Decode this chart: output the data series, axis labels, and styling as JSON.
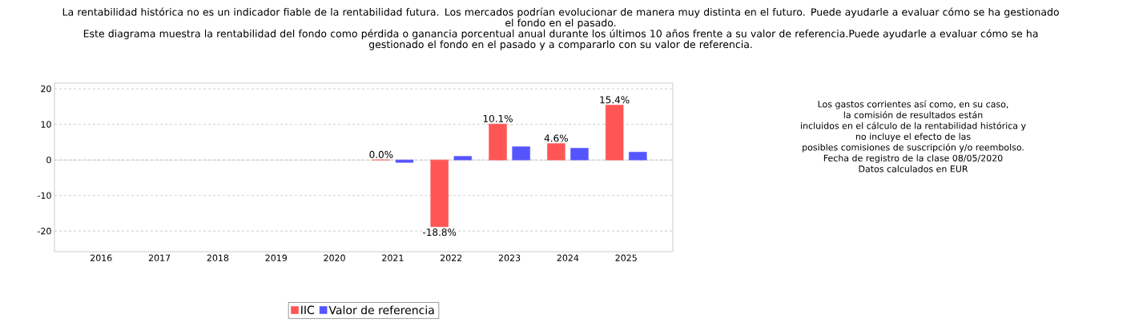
{
  "chart_data": {
    "type": "bar",
    "title": "La rentabilidad histórica no es un indicador fiable de la rentabilidad futura. Los mercados podrían evolucionar de manera muy distinta en el futuro. Puede ayudarle a evaluar cómo se ha gestionado el fondo en el pasado.",
    "subtitle": "Este diagrama muestra la rentabilidad del fondo como pérdida o ganancia porcentual anual durante los últimos 10 años frente a su valor de referencia.Puede ayudarle a evaluar cómo se ha gestionado el fondo en el pasado y a compararlo con su valor de referencia.",
    "annotations": [
      "Los gastos corrientes así como, en su caso,",
      "la comisión de resultados están",
      "incluidos en el cálculo de la rentabilidad histórica y",
      "no incluye el efecto de las",
      "posibles comisiones de suscripción y/o reembolso.",
      "Fecha de registro de la clase 08/05/2020",
      "Datos calculados en EUR"
    ],
    "categories": [
      "2016",
      "2017",
      "2018",
      "2019",
      "2020",
      "2021",
      "2022",
      "2023",
      "2024",
      "2025"
    ],
    "series": [
      {
        "name": "IIC",
        "color": "#ff5555",
        "values": [
          null,
          null,
          null,
          null,
          null,
          0.0,
          -18.8,
          10.1,
          4.6,
          15.4
        ],
        "value_labels": [
          null,
          null,
          null,
          null,
          null,
          "0.0%",
          "-18.8%",
          "10.1%",
          "4.6%",
          "15.4%"
        ]
      },
      {
        "name": "Valor de referencia",
        "color": "#5555ff",
        "values": [
          null,
          null,
          null,
          null,
          null,
          -0.7,
          1.0,
          3.7,
          3.3,
          2.2
        ]
      }
    ],
    "ylim": [
      -25.8,
      21.6
    ],
    "yticks": [
      -20,
      -10,
      0,
      10,
      20
    ],
    "ref_lines": [
      {
        "axis": "y",
        "value": 0,
        "color": "#808080"
      }
    ],
    "grid": "y",
    "legend": "bottom"
  }
}
